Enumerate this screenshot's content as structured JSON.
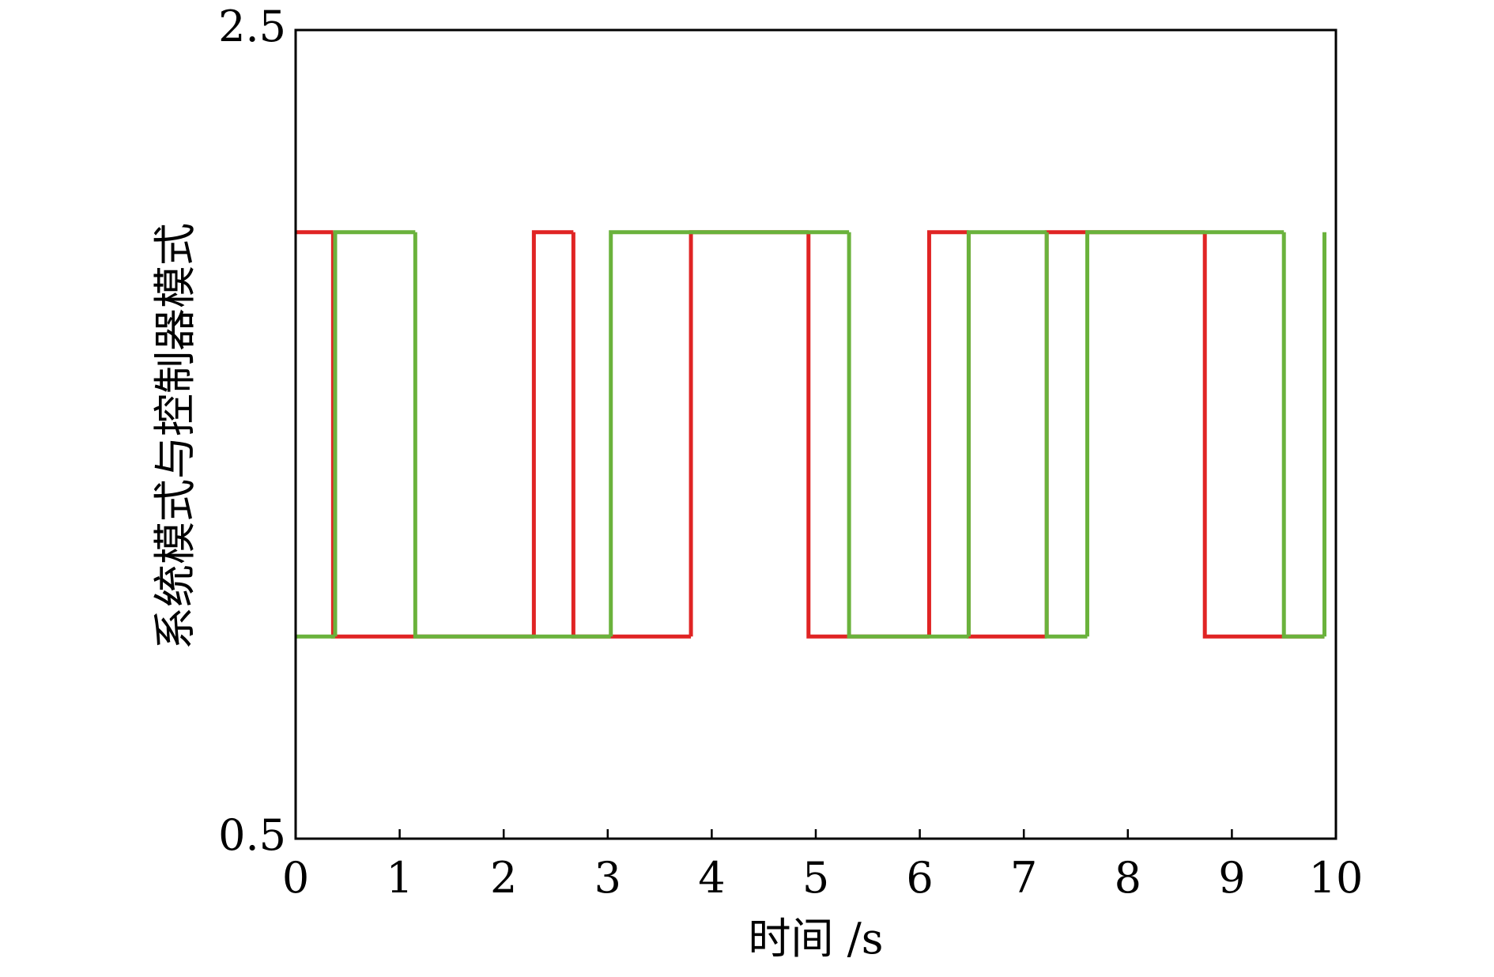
{
  "chart_data": {
    "type": "step",
    "xlabel": "时间 /s",
    "ylabel": "系统模式与控制器模式",
    "series": [
      {
        "color": "#e02424",
        "x": [
          0,
          0.36,
          2.29,
          2.67,
          3.8,
          4.93,
          6.09,
          6.47,
          7.22,
          8.74,
          9.89
        ],
        "values": [
          2,
          1,
          2,
          1,
          2,
          1,
          2,
          1,
          2,
          1,
          1
        ]
      },
      {
        "color": "#6ab23c",
        "x": [
          0,
          0.38,
          1.15,
          3.03,
          5.32,
          6.47,
          7.22,
          7.61,
          9.5,
          9.89
        ],
        "values": [
          1,
          2,
          1,
          2,
          1,
          2,
          1,
          2,
          1,
          2
        ]
      }
    ],
    "xlim": [
      0,
      10
    ],
    "xticks": [
      0,
      1,
      2,
      3,
      4,
      5,
      6,
      7,
      8,
      9,
      10
    ],
    "ylim": [
      0.5,
      2.5
    ],
    "yticks": [
      0.5,
      2.5
    ]
  }
}
